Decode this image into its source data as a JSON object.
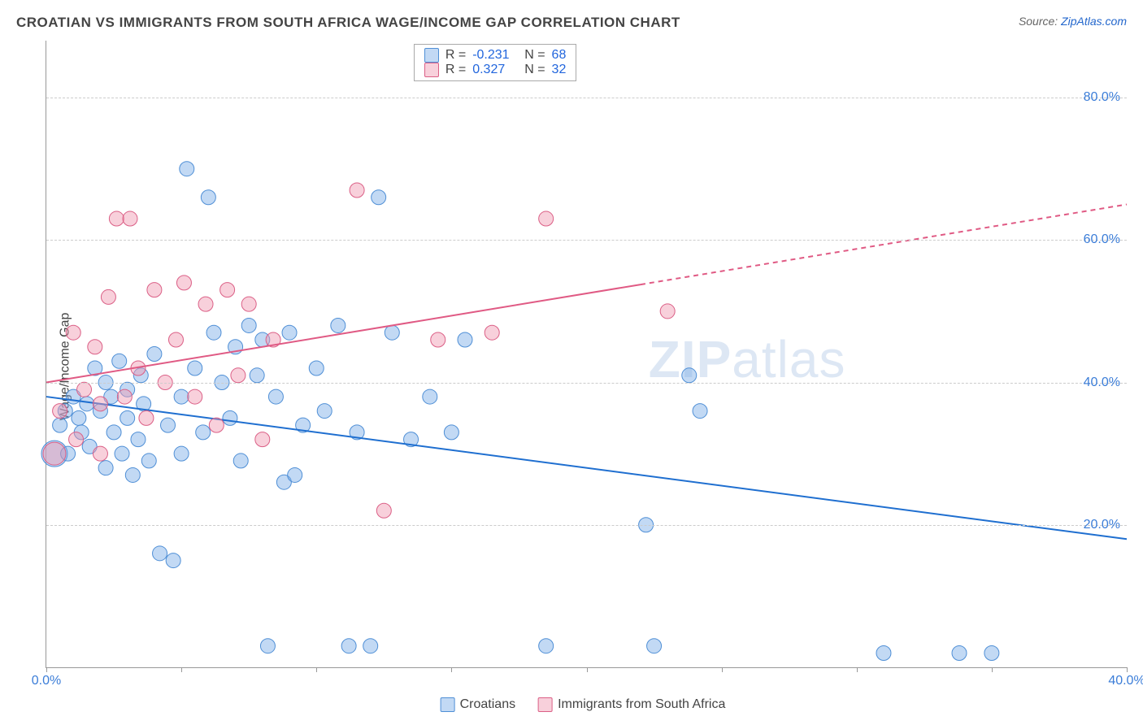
{
  "title": "CROATIAN VS IMMIGRANTS FROM SOUTH AFRICA WAGE/INCOME GAP CORRELATION CHART",
  "source_prefix": "Source: ",
  "source_link": "ZipAtlas.com",
  "ylabel": "Wage/Income Gap",
  "chart": {
    "type": "scatter",
    "xlim": [
      0,
      40
    ],
    "ylim": [
      0,
      88
    ],
    "x_ticks": [
      0,
      5,
      10,
      15,
      20,
      25,
      30,
      35,
      40
    ],
    "x_tick_labels": {
      "0": "0.0%",
      "40": "40.0%"
    },
    "y_gridlines": [
      20,
      40,
      60,
      80
    ],
    "y_tick_labels": {
      "20": "20.0%",
      "40": "40.0%",
      "60": "60.0%",
      "80": "80.0%"
    },
    "grid_color": "#cccccc",
    "axis_color": "#999999",
    "tick_label_color": "#3b7dd8",
    "background_color": "#ffffff",
    "marker_radius_default": 9,
    "series": [
      {
        "name": "Croatians",
        "fill": "rgba(120,170,230,0.45)",
        "stroke": "#4f8fd6",
        "trend": {
          "y_at_x0": 38,
          "y_at_x40": 18,
          "color": "#1f6fd0",
          "width": 2,
          "dash_from_x": null
        },
        "stats": {
          "R": "-0.231",
          "N": "68"
        },
        "points": [
          {
            "x": 0.3,
            "y": 30,
            "r": 16
          },
          {
            "x": 0.5,
            "y": 34
          },
          {
            "x": 0.7,
            "y": 36
          },
          {
            "x": 0.8,
            "y": 30
          },
          {
            "x": 1.0,
            "y": 38
          },
          {
            "x": 1.2,
            "y": 35
          },
          {
            "x": 1.3,
            "y": 33
          },
          {
            "x": 1.5,
            "y": 37
          },
          {
            "x": 1.6,
            "y": 31
          },
          {
            "x": 1.8,
            "y": 42
          },
          {
            "x": 2.0,
            "y": 36
          },
          {
            "x": 2.2,
            "y": 40
          },
          {
            "x": 2.2,
            "y": 28
          },
          {
            "x": 2.4,
            "y": 38
          },
          {
            "x": 2.5,
            "y": 33
          },
          {
            "x": 2.7,
            "y": 43
          },
          {
            "x": 2.8,
            "y": 30
          },
          {
            "x": 3.0,
            "y": 39
          },
          {
            "x": 3.0,
            "y": 35
          },
          {
            "x": 3.2,
            "y": 27
          },
          {
            "x": 3.4,
            "y": 32
          },
          {
            "x": 3.5,
            "y": 41
          },
          {
            "x": 3.6,
            "y": 37
          },
          {
            "x": 3.8,
            "y": 29
          },
          {
            "x": 4.0,
            "y": 44
          },
          {
            "x": 4.2,
            "y": 16
          },
          {
            "x": 4.5,
            "y": 34
          },
          {
            "x": 4.7,
            "y": 15
          },
          {
            "x": 5.0,
            "y": 38
          },
          {
            "x": 5.0,
            "y": 30
          },
          {
            "x": 5.2,
            "y": 70
          },
          {
            "x": 5.5,
            "y": 42
          },
          {
            "x": 5.8,
            "y": 33
          },
          {
            "x": 6.0,
            "y": 66
          },
          {
            "x": 6.2,
            "y": 47
          },
          {
            "x": 6.5,
            "y": 40
          },
          {
            "x": 6.8,
            "y": 35
          },
          {
            "x": 7.0,
            "y": 45
          },
          {
            "x": 7.2,
            "y": 29
          },
          {
            "x": 7.5,
            "y": 48
          },
          {
            "x": 7.8,
            "y": 41
          },
          {
            "x": 8.0,
            "y": 46
          },
          {
            "x": 8.2,
            "y": 3
          },
          {
            "x": 8.5,
            "y": 38
          },
          {
            "x": 8.8,
            "y": 26
          },
          {
            "x": 9.0,
            "y": 47
          },
          {
            "x": 9.2,
            "y": 27
          },
          {
            "x": 9.5,
            "y": 34
          },
          {
            "x": 10.0,
            "y": 42
          },
          {
            "x": 10.3,
            "y": 36
          },
          {
            "x": 10.8,
            "y": 48
          },
          {
            "x": 11.2,
            "y": 3
          },
          {
            "x": 11.5,
            "y": 33
          },
          {
            "x": 12.0,
            "y": 3
          },
          {
            "x": 12.3,
            "y": 66
          },
          {
            "x": 12.8,
            "y": 47
          },
          {
            "x": 13.5,
            "y": 32
          },
          {
            "x": 14.2,
            "y": 38
          },
          {
            "x": 15.0,
            "y": 33
          },
          {
            "x": 15.5,
            "y": 46
          },
          {
            "x": 18.5,
            "y": 3
          },
          {
            "x": 22.2,
            "y": 20
          },
          {
            "x": 22.5,
            "y": 3
          },
          {
            "x": 23.8,
            "y": 41
          },
          {
            "x": 24.2,
            "y": 36
          },
          {
            "x": 31.0,
            "y": 2
          },
          {
            "x": 33.8,
            "y": 2
          },
          {
            "x": 35.0,
            "y": 2
          }
        ]
      },
      {
        "name": "Immigrants from South Africa",
        "fill": "rgba(240,150,175,0.45)",
        "stroke": "#db5f86",
        "trend": {
          "y_at_x0": 40,
          "y_at_x40": 65,
          "color": "#e05a84",
          "width": 2,
          "dash_from_x": 22
        },
        "stats": {
          "R": "0.327",
          "N": "32"
        },
        "points": [
          {
            "x": 0.5,
            "y": 36
          },
          {
            "x": 1.0,
            "y": 47
          },
          {
            "x": 1.4,
            "y": 39
          },
          {
            "x": 1.8,
            "y": 45
          },
          {
            "x": 2.0,
            "y": 37
          },
          {
            "x": 2.3,
            "y": 52
          },
          {
            "x": 2.6,
            "y": 63
          },
          {
            "x": 2.9,
            "y": 38
          },
          {
            "x": 3.1,
            "y": 63
          },
          {
            "x": 3.4,
            "y": 42
          },
          {
            "x": 3.7,
            "y": 35
          },
          {
            "x": 4.0,
            "y": 53
          },
          {
            "x": 4.4,
            "y": 40
          },
          {
            "x": 4.8,
            "y": 46
          },
          {
            "x": 5.1,
            "y": 54
          },
          {
            "x": 5.5,
            "y": 38
          },
          {
            "x": 5.9,
            "y": 51
          },
          {
            "x": 6.3,
            "y": 34
          },
          {
            "x": 6.7,
            "y": 53
          },
          {
            "x": 7.1,
            "y": 41
          },
          {
            "x": 7.5,
            "y": 51
          },
          {
            "x": 8.0,
            "y": 32
          },
          {
            "x": 8.4,
            "y": 46
          },
          {
            "x": 11.5,
            "y": 67
          },
          {
            "x": 12.5,
            "y": 22
          },
          {
            "x": 14.5,
            "y": 46
          },
          {
            "x": 16.5,
            "y": 47
          },
          {
            "x": 18.5,
            "y": 63
          },
          {
            "x": 23.0,
            "y": 50
          },
          {
            "x": 0.3,
            "y": 30,
            "r": 14
          },
          {
            "x": 1.1,
            "y": 32
          },
          {
            "x": 2.0,
            "y": 30
          }
        ]
      }
    ]
  },
  "legend_stats_labels": {
    "R": "R =",
    "N": "N ="
  },
  "watermark": {
    "zip": "ZIP",
    "atlas": "atlas"
  }
}
